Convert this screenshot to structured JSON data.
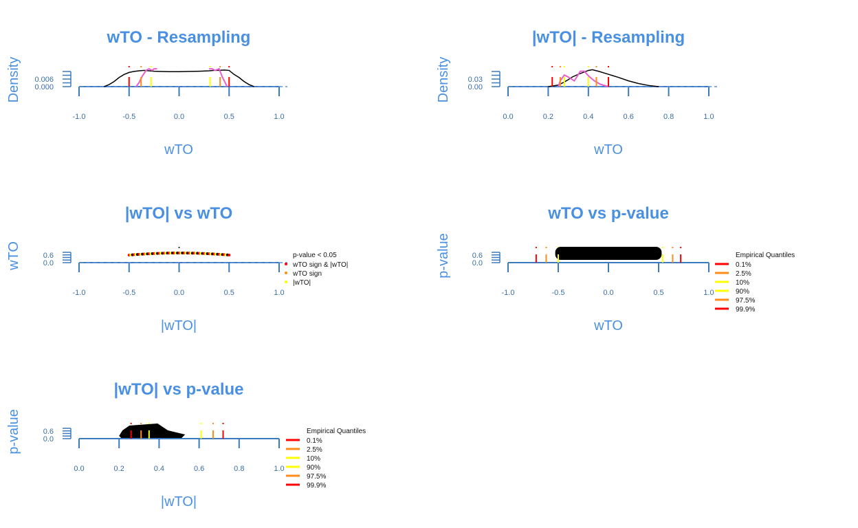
{
  "colors": {
    "title": "#4a90e2",
    "axis": "#3a7abf",
    "black": "#000000",
    "q_outer": "#ff0000",
    "q_mid": "#ff8c1a",
    "q_inner": "#ffff00",
    "density2": "#e75ecf",
    "baseline": "#5b8fd6"
  },
  "chart_data": [
    {
      "id": "p1",
      "type": "line",
      "title": "wTO - Resampling",
      "xlabel": "wTO",
      "ylabel": "Density",
      "xlim": [
        -1,
        1
      ],
      "xticks": [
        "-1.0",
        "-0.5",
        "0.0",
        "0.5",
        "1.0"
      ],
      "yticks": [
        "0.006",
        "0.000"
      ],
      "series": [
        {
          "color": "black",
          "x": [
            -0.75,
            -0.7,
            -0.65,
            -0.6,
            -0.55,
            -0.5,
            -0.45,
            -0.4,
            -0.35,
            -0.3,
            -0.25,
            -0.2,
            -0.1,
            0,
            0.1,
            0.2,
            0.3,
            0.35,
            0.4,
            0.45,
            0.5,
            0.55,
            0.6,
            0.65,
            0.7,
            0.75
          ],
          "y": [
            0,
            0.001,
            0.0025,
            0.0045,
            0.006,
            0.007,
            0.0075,
            0.0078,
            0.008,
            0.0078,
            0.0076,
            0.0075,
            0.0074,
            0.0074,
            0.0075,
            0.0076,
            0.0078,
            0.008,
            0.008,
            0.0082,
            0.008,
            0.006,
            0.0045,
            0.0025,
            0.001,
            0
          ]
        },
        {
          "color": "density2",
          "x": [
            -0.43,
            -0.4,
            -0.37,
            -0.33,
            -0.3,
            -0.27,
            -0.25,
            -0.22
          ],
          "y": [
            0,
            0.002,
            0.005,
            0.008,
            0.0088,
            0.008,
            0.0088,
            0.0088
          ]
        },
        {
          "color": "density2",
          "x": [
            0.3,
            0.33,
            0.36,
            0.4,
            0.43,
            0.46,
            0.48
          ],
          "y": [
            0.0088,
            0.0088,
            0.008,
            0.0088,
            0.005,
            0.002,
            0
          ]
        }
      ],
      "quantile_lines": [
        {
          "x": -0.5,
          "color": "q_outer"
        },
        {
          "x": -0.38,
          "color": "q_mid"
        },
        {
          "x": -0.28,
          "color": "q_inner"
        },
        {
          "x": 0.31,
          "color": "q_inner"
        },
        {
          "x": 0.41,
          "color": "q_mid"
        },
        {
          "x": 0.5,
          "color": "q_outer"
        }
      ],
      "ymax": 0.0095
    },
    {
      "id": "p2",
      "type": "line",
      "title": "|wTO| - Resampling",
      "xlabel": "wTO",
      "ylabel": "Density",
      "xlim": [
        0,
        1
      ],
      "xticks": [
        "0.0",
        "0.2",
        "0.4",
        "0.6",
        "0.8",
        "1.0"
      ],
      "yticks": [
        "0.03",
        "0.00"
      ],
      "series": [
        {
          "color": "black",
          "x": [
            0.2,
            0.25,
            0.28,
            0.3,
            0.32,
            0.35,
            0.38,
            0.4,
            0.42,
            0.45,
            0.5,
            0.55,
            0.6,
            0.65,
            0.7,
            0.75
          ],
          "y": [
            0,
            0.004,
            0.012,
            0.018,
            0.025,
            0.032,
            0.038,
            0.042,
            0.044,
            0.04,
            0.032,
            0.024,
            0.015,
            0.008,
            0.003,
            0
          ]
        },
        {
          "color": "density2",
          "x": [
            0.25,
            0.26,
            0.28,
            0.3,
            0.33,
            0.36,
            0.38,
            0.4,
            0.43,
            0.46,
            0.5
          ],
          "y": [
            0,
            0.015,
            0.03,
            0.025,
            0.015,
            0.04,
            0.04,
            0.028,
            0.015,
            0.006,
            0
          ]
        }
      ],
      "quantile_lines": [
        {
          "x": 0.22,
          "color": "q_outer"
        },
        {
          "x": 0.26,
          "color": "q_mid"
        },
        {
          "x": 0.28,
          "color": "q_inner"
        },
        {
          "x": 0.4,
          "color": "q_inner"
        },
        {
          "x": 0.44,
          "color": "q_mid"
        },
        {
          "x": 0.5,
          "color": "q_outer"
        }
      ],
      "ymax": 0.05
    },
    {
      "id": "p3",
      "type": "scatter",
      "title": "|wTO| vs wTO",
      "xlabel": "|wTO|",
      "ylabel": "wTO",
      "xlim": [
        -1,
        1
      ],
      "xticks": [
        "-1.0",
        "-0.5",
        "0.0",
        "0.5",
        "1.0"
      ],
      "yticks": [
        "0.6",
        "0.0"
      ],
      "legend": {
        "title": "p-value < 0.05",
        "items": [
          {
            "label": "wTO sign & |wTO|",
            "color": "q_outer"
          },
          {
            "label": "wTO sign",
            "color": "q_mid"
          },
          {
            "label": "|wTO|",
            "color": "q_inner"
          }
        ]
      }
    },
    {
      "id": "p4",
      "type": "scatter",
      "title": "wTO vs p-value",
      "xlabel": "wTO",
      "ylabel": "p-value",
      "xlim": [
        -1,
        1
      ],
      "xticks": [
        "-1.0",
        "-0.5",
        "0.0",
        "0.5",
        "1.0"
      ],
      "yticks": [
        "0.6",
        "0.0"
      ],
      "blob_range": [
        -0.53,
        0.53
      ],
      "quantile_lines": [
        {
          "x": -0.72,
          "color": "q_outer"
        },
        {
          "x": -0.62,
          "color": "q_mid"
        },
        {
          "x": -0.5,
          "color": "q_inner"
        },
        {
          "x": 0.54,
          "color": "q_inner"
        },
        {
          "x": 0.64,
          "color": "q_mid"
        },
        {
          "x": 0.72,
          "color": "q_outer"
        }
      ],
      "legend": {
        "title": "Empirical Quantiles",
        "items": [
          {
            "label": "0.1%",
            "color": "q_outer"
          },
          {
            "label": "2.5%",
            "color": "q_mid"
          },
          {
            "label": "10%",
            "color": "q_inner"
          },
          {
            "label": "90%",
            "color": "q_inner"
          },
          {
            "label": "97.5%",
            "color": "q_mid"
          },
          {
            "label": "99.9%",
            "color": "q_outer"
          }
        ]
      }
    },
    {
      "id": "p5",
      "type": "scatter",
      "title": "|wTO| vs p-value",
      "xlabel": "|wTO|",
      "ylabel": "p-value",
      "xlim": [
        0,
        1
      ],
      "xticks": [
        "0.0",
        "0.2",
        "0.4",
        "0.6",
        "0.8",
        "1.0"
      ],
      "yticks": [
        "0.6",
        "0.0"
      ],
      "blob_range": [
        0.2,
        0.53
      ],
      "quantile_lines": [
        {
          "x": 0.26,
          "color": "q_outer"
        },
        {
          "x": 0.31,
          "color": "q_mid"
        },
        {
          "x": 0.35,
          "color": "q_inner"
        },
        {
          "x": 0.61,
          "color": "q_inner"
        },
        {
          "x": 0.67,
          "color": "q_mid"
        },
        {
          "x": 0.72,
          "color": "q_outer"
        }
      ],
      "legend": {
        "title": "Empirical Quantiles",
        "items": [
          {
            "label": "0.1%",
            "color": "q_outer"
          },
          {
            "label": "2.5%",
            "color": "q_mid"
          },
          {
            "label": "10%",
            "color": "q_inner"
          },
          {
            "label": "90%",
            "color": "q_inner"
          },
          {
            "label": "97.5%",
            "color": "q_mid"
          },
          {
            "label": "99.9%",
            "color": "q_outer"
          }
        ]
      }
    }
  ]
}
